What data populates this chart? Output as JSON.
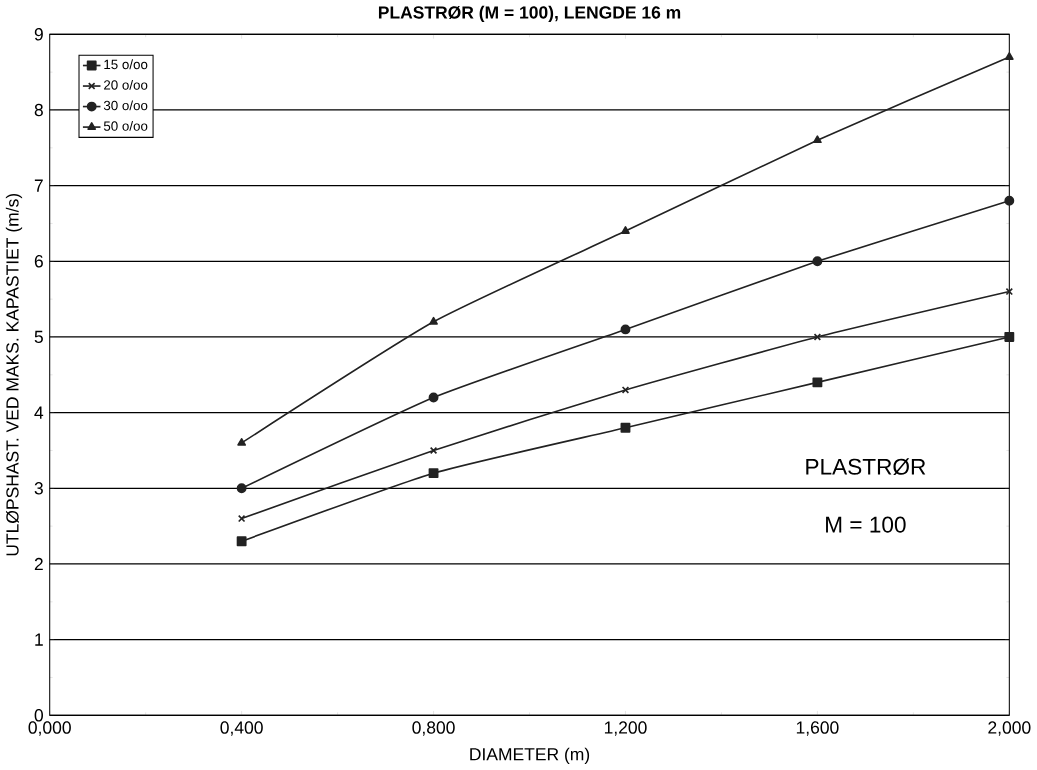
{
  "chart_data": {
    "type": "line",
    "title": "PLASTRØR (M = 100), LENGDE 16 m",
    "xlabel": "DIAMETER (m)",
    "ylabel": "UTLØPSHAST. VED MAKS. KAPASTIET (m/s)",
    "x": [
      0.4,
      0.8,
      1.2,
      1.6,
      2.0
    ],
    "series": [
      {
        "name": "15 o/oo",
        "color": "#222222",
        "marker": "square",
        "values": [
          2.3,
          3.2,
          3.8,
          4.4,
          5.0
        ]
      },
      {
        "name": "20 o/oo",
        "color": "#222222",
        "marker": "cross",
        "values": [
          2.6,
          3.5,
          4.3,
          5.0,
          5.6
        ]
      },
      {
        "name": "30 o/oo",
        "color": "#222222",
        "marker": "circle",
        "values": [
          3.0,
          4.2,
          5.1,
          6.0,
          6.8
        ]
      },
      {
        "name": "50 o/oo",
        "color": "#222222",
        "marker": "triangle",
        "values": [
          3.6,
          5.2,
          6.4,
          7.6,
          8.7
        ]
      }
    ],
    "xlim": [
      0,
      2.0
    ],
    "xticks": [
      {
        "value": 0,
        "label": "0,000"
      },
      {
        "value": 0.4,
        "label": "0,400"
      },
      {
        "value": 0.8,
        "label": "0,800"
      },
      {
        "value": 1.2,
        "label": "1,200"
      },
      {
        "value": 1.6,
        "label": "1,600"
      },
      {
        "value": 2.0,
        "label": "2,000"
      }
    ],
    "ylim": [
      0,
      9
    ],
    "yticks": [
      0,
      1,
      2,
      3,
      4,
      5,
      6,
      7,
      8,
      9
    ],
    "grid": "y",
    "legend": "top left",
    "line_style": "solid",
    "annotations": [
      "PLASTRØR",
      "M = 100"
    ]
  }
}
